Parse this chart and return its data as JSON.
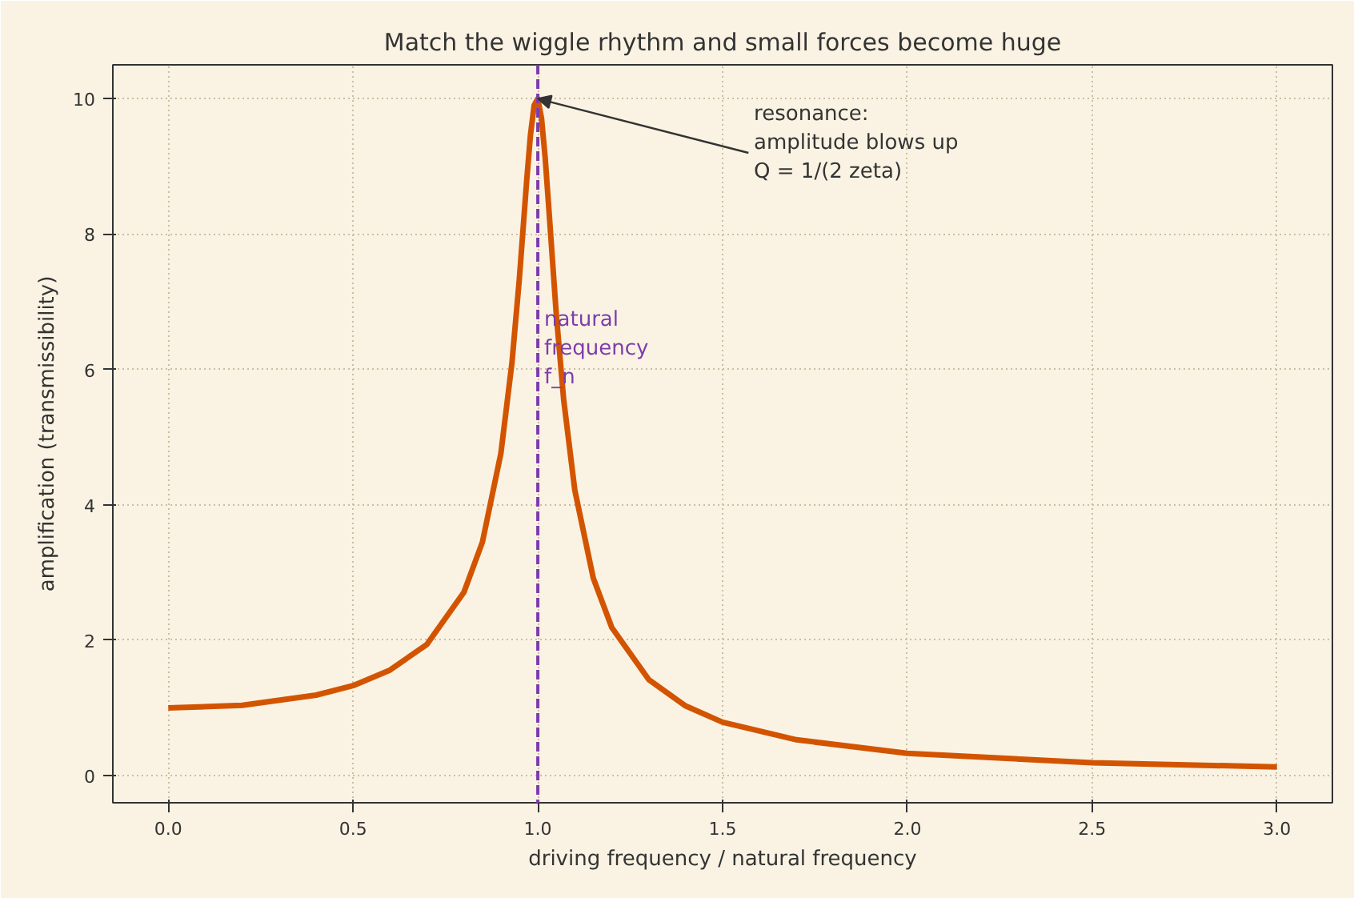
{
  "chart_data": {
    "type": "line",
    "title": "Match the wiggle rhythm and small forces become huge",
    "xlabel": "driving frequency / natural frequency",
    "ylabel": "amplification (transmissibility)",
    "series": [
      {
        "color": "#d35400",
        "x": [
          0,
          0.2,
          0.4,
          0.5,
          0.6,
          0.7,
          0.8,
          0.85,
          0.9,
          0.93,
          0.95,
          0.97,
          0.98,
          0.99,
          1.0,
          1.01,
          1.02,
          1.03,
          1.05,
          1.07,
          1.1,
          1.15,
          1.2,
          1.3,
          1.4,
          1.5,
          1.7,
          2.0,
          2.5,
          3.0
        ],
        "values": [
          1.0,
          1.04,
          1.19,
          1.33,
          1.56,
          1.94,
          2.71,
          3.45,
          4.76,
          6.1,
          7.34,
          8.8,
          9.46,
          9.9,
          10.0,
          9.71,
          9.12,
          8.36,
          6.81,
          5.55,
          4.22,
          2.92,
          2.19,
          1.42,
          1.03,
          0.79,
          0.53,
          0.33,
          0.19,
          0.13
        ]
      }
    ],
    "xlim": [
      -0.15,
      3.15
    ],
    "ylim": [
      -0.4,
      10.5
    ],
    "xticks": [
      {
        "value": 0,
        "label": "0.0"
      },
      0.5,
      {
        "value": 1,
        "label": "1.0"
      },
      1.5,
      {
        "value": 2,
        "label": "2.0"
      },
      2.5,
      {
        "value": 3,
        "label": "3.0"
      }
    ],
    "yticks": [
      0,
      2,
      4,
      6,
      8,
      10
    ],
    "grid": true,
    "line_style": "solid",
    "ref_lines": [
      {
        "axis": "x",
        "value": 1.0,
        "label": "natural\nfrequency\nf_n",
        "color": "#7d3cab",
        "line_style": "dashed"
      }
    ],
    "annotations": [
      {
        "text": "resonance:\namplitude blows up\nQ = 1/(2 zeta)",
        "x": 1.0,
        "y": 10.0
      }
    ]
  }
}
